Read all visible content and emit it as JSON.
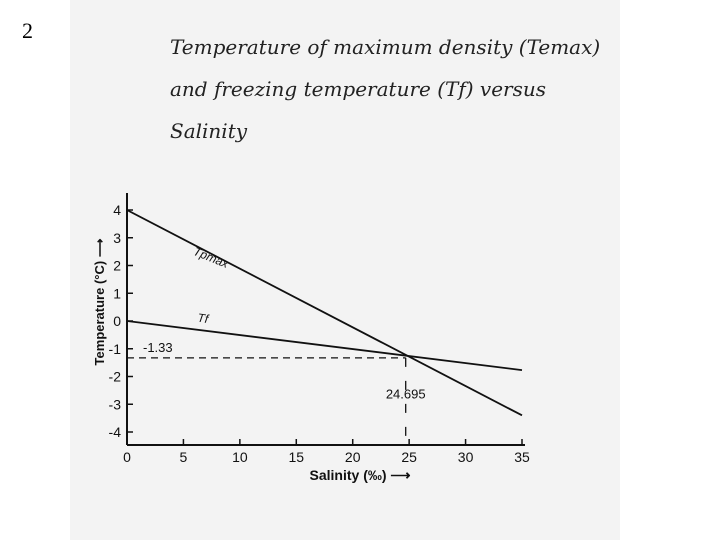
{
  "slide_number": "2",
  "title_lines": [
    "Temperature of maximum density (Temax)",
    "and freezing temperature (Tf) versus",
    "Salinity"
  ],
  "chart_data": {
    "type": "line",
    "xlabel": "Salinity (‰) ⟶",
    "ylabel": "Temperature (°C) ⟶",
    "xlim": [
      0,
      35
    ],
    "ylim": [
      -4,
      4
    ],
    "xticks": [
      0,
      5,
      10,
      15,
      20,
      25,
      30,
      35
    ],
    "yticks": [
      4,
      3,
      2,
      1,
      0,
      -1,
      -2,
      -3,
      -4
    ],
    "series": [
      {
        "name": "Tpmax",
        "x": [
          0,
          35
        ],
        "y": [
          4.0,
          -3.4
        ]
      },
      {
        "name": "Tf",
        "x": [
          0,
          35
        ],
        "y": [
          0.0,
          -1.77
        ]
      }
    ],
    "annotations": {
      "intersection_salinity": "24.695",
      "intersection_temperature": "-1.33",
      "x": 24.695,
      "y": -1.33
    }
  }
}
